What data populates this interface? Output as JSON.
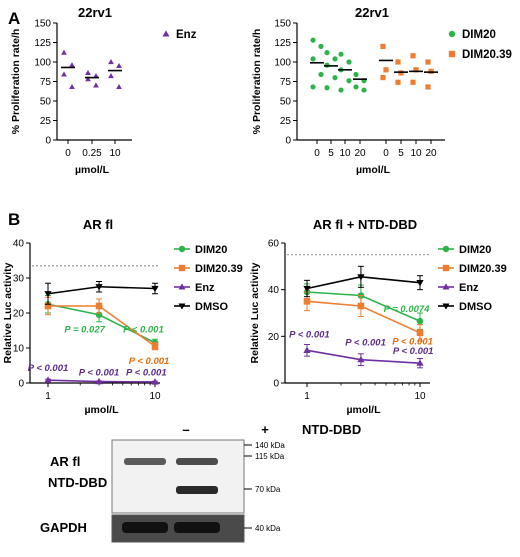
{
  "panel_labels": [
    "A",
    "B"
  ],
  "colors": {
    "purple": "#7030a0",
    "green": "#2eb34a",
    "orange": "#ed7d31",
    "black": "#000000",
    "gray": "#9a9a9a",
    "p_green": "#2eb34a",
    "p_orange": "#e46c0a",
    "p_purple": "#5b2c8a"
  },
  "chart_data": [
    {
      "id": "A-left",
      "type": "scatter",
      "title": "22rv1",
      "ylabel": "% Proliferation rate/h",
      "xlabel": "µmol/L",
      "ylim": [
        0,
        150
      ],
      "yticks": [
        0,
        25,
        50,
        75,
        100,
        125,
        150
      ],
      "categories": [
        "0",
        "0.25",
        "10"
      ],
      "legend": [
        {
          "name": "Enz",
          "color": "purple",
          "marker": "triangle"
        }
      ],
      "groups": [
        {
          "category": "0",
          "color": "purple",
          "marker": "triangle",
          "mean": 93,
          "points": [
            112,
            96,
            84,
            68
          ]
        },
        {
          "category": "0.25",
          "color": "purple",
          "marker": "triangle",
          "mean": 80,
          "points": [
            86,
            82,
            78,
            70
          ]
        },
        {
          "category": "10",
          "color": "purple",
          "marker": "triangle",
          "mean": 89,
          "points": [
            100,
            95,
            82,
            68
          ]
        }
      ]
    },
    {
      "id": "A-right",
      "type": "scatter",
      "title": "22rv1",
      "ylabel": "% Proliferation rate/h",
      "xlabel": "µmol/L",
      "ylim": [
        0,
        150
      ],
      "yticks": [
        0,
        25,
        50,
        75,
        100,
        125,
        150
      ],
      "categories": [
        "0",
        "5",
        "10",
        "20",
        "0",
        "5",
        "10",
        "20"
      ],
      "legend": [
        {
          "name": "DIM20",
          "color": "green",
          "marker": "circle"
        },
        {
          "name": "DIM20.39",
          "color": "orange",
          "marker": "square"
        }
      ],
      "groups": [
        {
          "category": "0",
          "color": "green",
          "marker": "circle",
          "mean": 99,
          "points": [
            128,
            120,
            104,
            84,
            68
          ]
        },
        {
          "category": "5",
          "color": "green",
          "marker": "circle",
          "mean": 95,
          "points": [
            112,
            104,
            96,
            80,
            67
          ]
        },
        {
          "category": "10",
          "color": "green",
          "marker": "circle",
          "mean": 90,
          "points": [
            110,
            100,
            90,
            76,
            64
          ]
        },
        {
          "category": "20",
          "color": "green",
          "marker": "circle",
          "mean": 78,
          "points": [
            84,
            76,
            68,
            64
          ]
        },
        {
          "category": "0",
          "color": "orange",
          "marker": "square",
          "mean": 102,
          "points": [
            120,
            90,
            80
          ]
        },
        {
          "category": "5",
          "color": "orange",
          "marker": "square",
          "mean": 87,
          "points": [
            100,
            86,
            74
          ]
        },
        {
          "category": "10",
          "color": "orange",
          "marker": "square",
          "mean": 88,
          "points": [
            108,
            90,
            74
          ]
        },
        {
          "category": "20",
          "color": "orange",
          "marker": "square",
          "mean": 87,
          "points": [
            100,
            88,
            68
          ]
        }
      ]
    },
    {
      "id": "B-left",
      "type": "line",
      "title": "AR fl",
      "ylabel": "Relative Luc activity",
      "xlabel": "µmol/L",
      "scale": "log",
      "x": [
        1,
        3,
        10
      ],
      "xticks": [
        "1",
        "10"
      ],
      "ylim": [
        0,
        40
      ],
      "yticks": [
        0,
        10,
        20,
        30,
        40
      ],
      "reference_line": 33.5,
      "series": [
        {
          "name": "DIM20",
          "color": "green",
          "marker": "circle",
          "values": [
            22.5,
            19.5,
            11.5
          ],
          "err": [
            2.5,
            2.0,
            1.0
          ]
        },
        {
          "name": "DIM20.39",
          "color": "orange",
          "marker": "square",
          "values": [
            22.0,
            22.0,
            10.5
          ],
          "err": [
            2.5,
            2.0,
            1.0
          ]
        },
        {
          "name": "Enz",
          "color": "purple",
          "marker": "triangle",
          "values": [
            0.8,
            0.4,
            0.3
          ],
          "err": [
            0.3,
            0.2,
            0.2
          ]
        },
        {
          "name": "DMSO",
          "color": "black",
          "marker": "triangle-down",
          "values": [
            25.5,
            27.5,
            27.0
          ],
          "err": [
            3.0,
            1.5,
            1.5
          ]
        }
      ],
      "annotations": [
        {
          "text": "P = 0.027",
          "color": "p_green",
          "x": 2.2,
          "y": 14.5
        },
        {
          "text": "P < 0.001",
          "color": "p_green",
          "x": 7.8,
          "y": 14.5
        },
        {
          "text": "P < 0.001",
          "color": "p_orange",
          "x": 8.8,
          "y": 5.5
        },
        {
          "text": "P < 0.001",
          "color": "p_purple",
          "x": 1.0,
          "y": 3.5
        },
        {
          "text": "P < 0.001",
          "color": "p_purple",
          "x": 3.0,
          "y": 2.2
        },
        {
          "text": "P < 0.001",
          "color": "p_purple",
          "x": 8.3,
          "y": 2.2
        }
      ]
    },
    {
      "id": "B-right",
      "type": "line",
      "title": "AR fl + NTD-DBD",
      "ylabel": "Relative Luc activity",
      "xlabel": "µmol/L",
      "scale": "log",
      "x": [
        1,
        3,
        10
      ],
      "xticks": [
        "1",
        "10"
      ],
      "ylim": [
        0,
        60
      ],
      "yticks": [
        0,
        20,
        40,
        60
      ],
      "reference_line": 55,
      "series": [
        {
          "name": "DIM20",
          "color": "green",
          "marker": "circle",
          "values": [
            39,
            37.5,
            26.5
          ],
          "err": [
            3.5,
            4.5,
            3.5
          ]
        },
        {
          "name": "DIM20.39",
          "color": "orange",
          "marker": "square",
          "values": [
            35,
            33,
            21.5
          ],
          "err": [
            4.0,
            4.5,
            3.5
          ]
        },
        {
          "name": "Enz",
          "color": "purple",
          "marker": "triangle",
          "values": [
            14,
            10,
            8.5
          ],
          "err": [
            2.5,
            2.5,
            2.0
          ]
        },
        {
          "name": "DMSO",
          "color": "black",
          "marker": "triangle-down",
          "values": [
            40.5,
            45.5,
            43
          ],
          "err": [
            3.5,
            4.5,
            3.0
          ]
        }
      ],
      "annotations": [
        {
          "text": "P = 0.0074",
          "color": "p_green",
          "x": 7.6,
          "y": 30.5
        },
        {
          "text": "P < 0.001",
          "color": "p_orange",
          "x": 8.6,
          "y": 16.5
        },
        {
          "text": "P < 0.001",
          "color": "p_purple",
          "x": 1.05,
          "y": 19.5
        },
        {
          "text": "P < 0.001",
          "color": "p_purple",
          "x": 3.3,
          "y": 16.0
        },
        {
          "text": "P < 0.001",
          "color": "p_purple",
          "x": 8.7,
          "y": 12.5
        }
      ]
    }
  ],
  "western_blot": {
    "lane_labels": [
      "–",
      "+"
    ],
    "condition": "NTD-DBD",
    "row_labels": [
      "AR fl",
      "NTD-DBD",
      "GAPDH"
    ],
    "markers": [
      "140 kDa",
      "115 kDa",
      "70 kDa",
      "40 kDa"
    ]
  }
}
